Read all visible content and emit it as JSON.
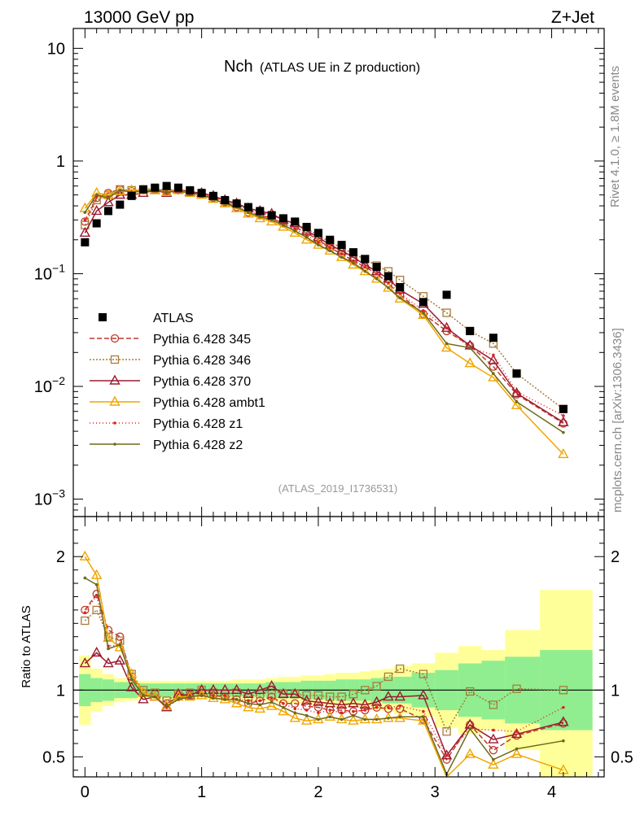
{
  "header": {
    "left": "13000 GeV pp",
    "right": "Z+Jet"
  },
  "side_labels": {
    "rivet": "Rivet 4.1.0, ≥ 1.8M events",
    "mcplots": "mcplots.cern.ch [arXiv:1306.3436]"
  },
  "chart_data": {
    "type": "line",
    "title_main": "Nch",
    "title_sub": "(ATLAS UE in Z production)",
    "analysis": "(ATLAS_2019_I1736531)",
    "x": [
      0.0,
      0.1,
      0.2,
      0.3,
      0.4,
      0.5,
      0.6,
      0.7,
      0.8,
      0.9,
      1.0,
      1.1,
      1.2,
      1.3,
      1.4,
      1.5,
      1.6,
      1.7,
      1.8,
      1.9,
      2.0,
      2.1,
      2.2,
      2.3,
      2.4,
      2.5,
      2.6,
      2.7,
      2.9,
      3.1,
      3.3,
      3.5,
      3.7,
      4.1
    ],
    "xlim": [
      -0.1,
      4.45
    ],
    "xticks": [
      "0",
      "1",
      "2",
      "3",
      "4"
    ],
    "main_panel": {
      "ylim": [
        0.0007,
        15
      ],
      "yscale": "log",
      "yticks": [
        {
          "base": "10",
          "exp": "−3",
          "value": 0.001
        },
        {
          "base": "10",
          "exp": "−2",
          "value": 0.01
        },
        {
          "base": "10",
          "exp": "−1",
          "value": 0.1
        },
        {
          "base": "1",
          "exp": "",
          "value": 1
        },
        {
          "base": "10",
          "exp": "",
          "value": 10
        }
      ],
      "data": {
        "name": "ATLAS",
        "values": [
          0.19,
          0.28,
          0.36,
          0.41,
          0.49,
          0.56,
          0.58,
          0.6,
          0.58,
          0.55,
          0.52,
          0.49,
          0.45,
          0.42,
          0.39,
          0.36,
          0.33,
          0.31,
          0.29,
          0.26,
          0.23,
          0.2,
          0.18,
          0.155,
          0.135,
          0.115,
          0.095,
          0.076,
          0.056,
          0.065,
          0.031,
          0.027,
          0.013,
          0.0063
        ]
      },
      "series": [
        {
          "name": "Pythia 6.428 345",
          "color": "#c0392b",
          "dash": "6,3",
          "marker": "circle",
          "values": [
            0.29,
            0.47,
            0.52,
            0.56,
            0.54,
            0.55,
            0.56,
            0.54,
            0.55,
            0.53,
            0.51,
            0.47,
            0.43,
            0.39,
            0.35,
            0.33,
            0.31,
            0.28,
            0.26,
            0.23,
            0.2,
            0.17,
            0.15,
            0.13,
            0.115,
            0.1,
            0.082,
            0.065,
            0.044,
            0.031,
            0.023,
            0.015,
            0.0085,
            0.0047
          ]
        },
        {
          "name": "Pythia 6.428 346",
          "color": "#a67c3a",
          "dash": "2,2",
          "marker": "square",
          "values": [
            0.27,
            0.45,
            0.5,
            0.56,
            0.55,
            0.56,
            0.57,
            0.55,
            0.56,
            0.54,
            0.52,
            0.48,
            0.44,
            0.41,
            0.37,
            0.35,
            0.33,
            0.3,
            0.28,
            0.25,
            0.22,
            0.19,
            0.17,
            0.15,
            0.135,
            0.118,
            0.105,
            0.088,
            0.063,
            0.045,
            0.031,
            0.024,
            0.013,
            0.0063
          ]
        },
        {
          "name": "Pythia 6.428 370",
          "color": "#9b1b30",
          "dash": "",
          "marker": "triangle",
          "values": [
            0.23,
            0.36,
            0.43,
            0.5,
            0.5,
            0.52,
            0.55,
            0.52,
            0.56,
            0.53,
            0.52,
            0.49,
            0.45,
            0.42,
            0.38,
            0.36,
            0.34,
            0.3,
            0.28,
            0.24,
            0.21,
            0.18,
            0.16,
            0.14,
            0.12,
            0.105,
            0.09,
            0.072,
            0.054,
            0.033,
            0.023,
            0.017,
            0.0087,
            0.0048
          ]
        },
        {
          "name": "Pythia 6.428 ambt1",
          "color": "#f0a500",
          "dash": "",
          "marker": "triangle",
          "values": [
            0.38,
            0.52,
            0.5,
            0.54,
            0.55,
            0.55,
            0.55,
            0.53,
            0.55,
            0.52,
            0.5,
            0.46,
            0.42,
            0.38,
            0.34,
            0.31,
            0.29,
            0.26,
            0.23,
            0.2,
            0.18,
            0.16,
            0.14,
            0.12,
            0.105,
            0.09,
            0.075,
            0.06,
            0.043,
            0.022,
            0.016,
            0.012,
            0.0068,
            0.0025
          ]
        },
        {
          "name": "Pythia 6.428 z1",
          "color": "#dd2222",
          "dash": "1,3",
          "marker": "dot",
          "values": [
            0.3,
            0.48,
            0.48,
            0.55,
            0.53,
            0.54,
            0.55,
            0.52,
            0.54,
            0.52,
            0.5,
            0.47,
            0.43,
            0.39,
            0.36,
            0.33,
            0.31,
            0.28,
            0.25,
            0.22,
            0.19,
            0.17,
            0.15,
            0.13,
            0.115,
            0.1,
            0.083,
            0.067,
            0.047,
            0.033,
            0.022,
            0.019,
            0.009,
            0.0055
          ]
        },
        {
          "name": "Pythia 6.428 z2",
          "color": "#6b6b1a",
          "dash": "",
          "marker": "dot",
          "values": [
            0.35,
            0.5,
            0.47,
            0.55,
            0.53,
            0.54,
            0.55,
            0.53,
            0.54,
            0.52,
            0.5,
            0.46,
            0.42,
            0.39,
            0.35,
            0.32,
            0.3,
            0.27,
            0.24,
            0.21,
            0.18,
            0.16,
            0.14,
            0.125,
            0.105,
            0.09,
            0.075,
            0.061,
            0.045,
            0.024,
            0.022,
            0.013,
            0.0073,
            0.0039
          ]
        }
      ]
    },
    "ratio_panel": {
      "ylabel": "Ratio to ATLAS",
      "ylim": [
        0.35,
        2.3
      ],
      "ytick_labels": [
        "0.5",
        "1",
        "2"
      ],
      "ytick_values": [
        0.5,
        1,
        2
      ],
      "bands": {
        "green_halfwidth": [
          0.12,
          0.09,
          0.08,
          0.06,
          0.06,
          0.05,
          0.05,
          0.05,
          0.05,
          0.05,
          0.05,
          0.05,
          0.05,
          0.05,
          0.05,
          0.05,
          0.06,
          0.06,
          0.06,
          0.07,
          0.07,
          0.07,
          0.08,
          0.08,
          0.08,
          0.09,
          0.1,
          0.1,
          0.13,
          0.15,
          0.2,
          0.22,
          0.25,
          0.3
        ],
        "yellow_halfwidth": [
          0.26,
          0.16,
          0.12,
          0.09,
          0.08,
          0.07,
          0.07,
          0.07,
          0.07,
          0.07,
          0.07,
          0.07,
          0.07,
          0.08,
          0.08,
          0.08,
          0.09,
          0.1,
          0.1,
          0.11,
          0.11,
          0.12,
          0.13,
          0.13,
          0.14,
          0.15,
          0.16,
          0.18,
          0.2,
          0.28,
          0.33,
          0.3,
          0.45,
          0.75
        ]
      },
      "series_ratio": [
        [
          1.6,
          1.72,
          1.45,
          1.4,
          1.1,
          0.98,
          0.97,
          0.9,
          0.95,
          0.97,
          0.98,
          0.96,
          0.95,
          0.93,
          0.9,
          0.92,
          0.95,
          0.9,
          0.9,
          0.88,
          0.87,
          0.85,
          0.85,
          0.84,
          0.85,
          0.87,
          0.86,
          0.86,
          0.78,
          0.48,
          0.74,
          0.55,
          0.66,
          0.75
        ],
        [
          1.52,
          1.6,
          1.4,
          1.37,
          1.12,
          1.0,
          0.98,
          0.92,
          0.97,
          0.98,
          1.0,
          0.98,
          0.97,
          0.98,
          0.95,
          0.97,
          1.0,
          0.97,
          0.97,
          0.96,
          0.96,
          0.95,
          0.95,
          0.97,
          1.0,
          1.03,
          1.1,
          1.16,
          1.12,
          0.69,
          0.99,
          0.89,
          1.01,
          1.0
        ],
        [
          1.2,
          1.28,
          1.2,
          1.22,
          1.02,
          0.93,
          0.95,
          0.87,
          0.97,
          0.96,
          1.0,
          1.0,
          1.0,
          1.0,
          0.97,
          1.0,
          1.03,
          0.97,
          0.97,
          0.92,
          0.91,
          0.9,
          0.89,
          0.9,
          0.89,
          0.91,
          0.95,
          0.95,
          0.96,
          0.51,
          0.74,
          0.63,
          0.67,
          0.76
        ],
        [
          2.0,
          1.86,
          1.39,
          1.32,
          1.12,
          0.98,
          0.95,
          0.88,
          0.95,
          0.95,
          0.96,
          0.94,
          0.93,
          0.9,
          0.87,
          0.86,
          0.88,
          0.84,
          0.79,
          0.77,
          0.78,
          0.8,
          0.78,
          0.77,
          0.78,
          0.78,
          0.79,
          0.79,
          0.77,
          0.34,
          0.52,
          0.44,
          0.52,
          0.4
        ],
        [
          1.58,
          1.71,
          1.33,
          1.34,
          1.08,
          0.96,
          0.95,
          0.87,
          0.93,
          0.95,
          0.96,
          0.96,
          0.96,
          0.93,
          0.92,
          0.92,
          0.94,
          0.9,
          0.86,
          0.85,
          0.83,
          0.85,
          0.83,
          0.84,
          0.85,
          0.87,
          0.87,
          0.88,
          0.84,
          0.51,
          0.71,
          0.7,
          0.69,
          0.87
        ],
        [
          1.84,
          1.79,
          1.31,
          1.34,
          1.08,
          0.96,
          0.95,
          0.88,
          0.93,
          0.95,
          0.96,
          0.94,
          0.93,
          0.93,
          0.9,
          0.89,
          0.91,
          0.87,
          0.83,
          0.81,
          0.78,
          0.8,
          0.78,
          0.81,
          0.78,
          0.78,
          0.79,
          0.8,
          0.8,
          0.37,
          0.71,
          0.48,
          0.56,
          0.62
        ]
      ]
    },
    "legend_position": "lower-left of main panel"
  }
}
